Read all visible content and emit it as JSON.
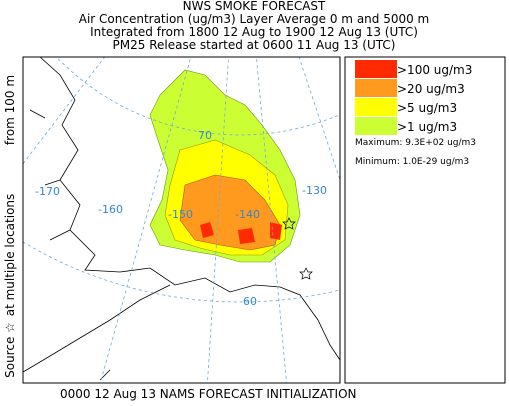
{
  "header": {
    "title": "NWS SMOKE FORECAST",
    "lines": [
      "Air Concentration (ug/m3) Layer Average    0 m and  5000 m",
      "Integrated from 1800 12 Aug to 1900 12 Aug 13 (UTC)",
      "PM25 Release started at 0600 11 Aug 13 (UTC)"
    ]
  },
  "side_label": [
    "Source ☆",
    "at multiple locations",
    "from  100 m"
  ],
  "legend": {
    "items": [
      {
        "label": ">100 ug/m3",
        "color": "#ff2a00"
      },
      {
        "label": ">20 ug/m3",
        "color": "#ff9a1e"
      },
      {
        "label": ">5 ug/m3",
        "color": "#ffff00"
      },
      {
        "label": ">1 ug/m3",
        "color": "#ccff33"
      }
    ],
    "maximum": "Maximum: 9.3E+02 ug/m3",
    "minimum": "Minimum: 1.0E-29 ug/m3"
  },
  "map": {
    "labels": [
      "-170",
      "-160",
      "-150",
      "-140",
      "-130",
      "70",
      "60"
    ]
  },
  "footer": "0000 12 Aug 13 NAMS FORECAST INITIALIZATION"
}
